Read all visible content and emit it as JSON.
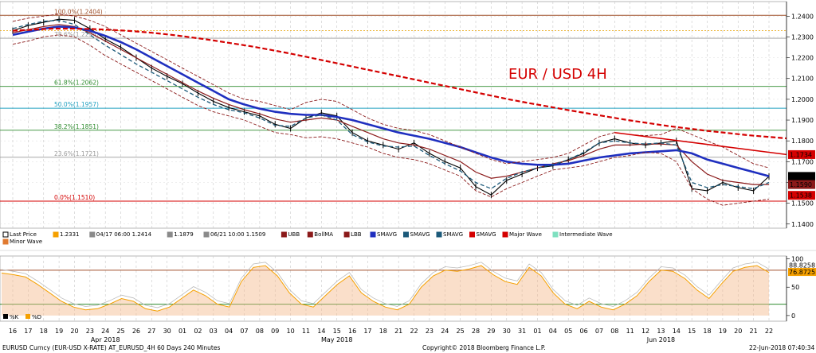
{
  "chart_data": {
    "type": "line",
    "title": "EUR / USD 4H",
    "title_color": "#d40000",
    "price_axis": {
      "ticks": [
        "1.2400",
        "1.2300",
        "1.2200",
        "1.2100",
        "1.2000",
        "1.1900",
        "1.1800",
        "1.1700",
        "1.1600",
        "1.1500",
        "1.1400"
      ],
      "ylim": [
        1.138,
        1.247
      ]
    },
    "osc_axis": {
      "ticks": [
        "100",
        "50",
        "0"
      ],
      "ylim": [
        -10,
        105
      ]
    },
    "price_tags": [
      {
        "label": "1.1734",
        "value": 1.1734,
        "bg": "#d40000",
        "fg": "#ffffff"
      },
      {
        "label": "1.1629",
        "value": 1.1629,
        "bg": "#000000",
        "fg": "#ffffff"
      },
      {
        "label": "1.1590",
        "value": 1.159,
        "bg": "#8b1a1a",
        "fg": "#ffffff"
      },
      {
        "label": "1.1538",
        "value": 1.1538,
        "bg": "#d40000",
        "fg": "#ffffff"
      }
    ],
    "osc_tags": [
      {
        "label": "88.8258",
        "value": 88.8258,
        "bg": "#ffffff",
        "fg": "#000000"
      },
      {
        "label": "76.8725",
        "value": 76.8725,
        "bg": "#f5a000",
        "fg": "#000000"
      }
    ],
    "fib_levels": [
      {
        "label": "100.0%(1.2404)",
        "value": 1.2404,
        "color": "#a0522d"
      },
      {
        "label": "78.6%(1.2294)",
        "value": 1.2294,
        "color": "#9a9a9a"
      },
      {
        "label": "61.8%(1.2062)",
        "value": 1.2062,
        "color": "#2e8b2e"
      },
      {
        "label": "50.0%(1.1957)",
        "value": 1.1957,
        "color": "#20a0c0"
      },
      {
        "label": "38.2%(1.1851)",
        "value": 1.1851,
        "color": "#2e8b2e"
      },
      {
        "label": "23.6%(1.1721)",
        "value": 1.1721,
        "color": "#9a9a9a"
      },
      {
        "label": "0.0%(1.1510)",
        "value": 1.151,
        "color": "#d40000"
      }
    ],
    "x_day_labels": [
      "16",
      "17",
      "18",
      "19",
      "20",
      "23",
      "24",
      "25",
      "26",
      "27",
      "30",
      "01",
      "02",
      "03",
      "04",
      "07",
      "08",
      "09",
      "10",
      "11",
      "14",
      "15",
      "16",
      "17",
      "18",
      "21",
      "22",
      "23",
      "24",
      "25",
      "28",
      "29",
      "30",
      "31",
      "01",
      "04",
      "05",
      "06",
      "07",
      "08",
      "11",
      "12",
      "13",
      "14",
      "15",
      "18",
      "19",
      "20",
      "21",
      "22"
    ],
    "x_month_labels": [
      {
        "label": "Apr 2018",
        "day_index": 6
      },
      {
        "label": "May 2018",
        "day_index": 21
      },
      {
        "label": "Jun 2018",
        "day_index": 42
      }
    ],
    "series": [
      {
        "name": "Last Price",
        "color": "#000000",
        "values": [
          1.233,
          1.2355,
          1.237,
          1.2385,
          1.238,
          1.234,
          1.229,
          1.225,
          1.22,
          1.215,
          1.211,
          1.2075,
          1.203,
          1.199,
          1.196,
          1.194,
          1.192,
          1.188,
          1.186,
          1.191,
          1.1935,
          1.192,
          1.184,
          1.18,
          1.178,
          1.176,
          1.179,
          1.174,
          1.17,
          1.167,
          1.158,
          1.154,
          1.161,
          1.164,
          1.167,
          1.168,
          1.171,
          1.174,
          1.179,
          1.181,
          1.179,
          1.178,
          1.179,
          1.18,
          1.157,
          1.156,
          1.16,
          1.1575,
          1.156,
          1.1629
        ]
      },
      {
        "name": "BollMA",
        "color": "#8b1a1a",
        "values": [
          1.232,
          1.2335,
          1.235,
          1.236,
          1.235,
          1.232,
          1.228,
          1.224,
          1.22,
          1.216,
          1.212,
          1.208,
          1.204,
          1.2005,
          1.1975,
          1.195,
          1.193,
          1.1905,
          1.189,
          1.19,
          1.191,
          1.19,
          1.187,
          1.184,
          1.181,
          1.179,
          1.178,
          1.176,
          1.173,
          1.17,
          1.165,
          1.162,
          1.163,
          1.165,
          1.167,
          1.169,
          1.1705,
          1.173,
          1.176,
          1.178,
          1.178,
          1.1785,
          1.1785,
          1.178,
          1.17,
          1.164,
          1.161,
          1.16,
          1.159,
          1.159
        ]
      },
      {
        "name": "SMAVG (blue)",
        "color": "#1f2fbf",
        "values": [
          1.231,
          1.2325,
          1.234,
          1.235,
          1.2345,
          1.233,
          1.2305,
          1.2275,
          1.224,
          1.22,
          1.216,
          1.212,
          1.208,
          1.204,
          1.2,
          1.1975,
          1.1955,
          1.194,
          1.193,
          1.1925,
          1.1925,
          1.1915,
          1.19,
          1.188,
          1.186,
          1.184,
          1.1825,
          1.181,
          1.179,
          1.177,
          1.1745,
          1.172,
          1.17,
          1.169,
          1.1685,
          1.1685,
          1.169,
          1.1705,
          1.172,
          1.173,
          1.174,
          1.1745,
          1.175,
          1.1755,
          1.174,
          1.171,
          1.169,
          1.167,
          1.165,
          1.163
        ]
      },
      {
        "name": "SMAVG (dashed)",
        "color": "#1c5a7a",
        "values": [
          1.234,
          1.236,
          1.2375,
          1.238,
          1.236,
          1.231,
          1.226,
          1.2215,
          1.217,
          1.213,
          1.209,
          1.205,
          1.201,
          1.1975,
          1.195,
          1.1935,
          1.191,
          1.1875,
          1.187,
          1.191,
          1.1925,
          1.19,
          1.183,
          1.1795,
          1.1775,
          1.177,
          1.1775,
          1.173,
          1.169,
          1.1655,
          1.16,
          1.157,
          1.162,
          1.165,
          1.167,
          1.1685,
          1.171,
          1.1745,
          1.179,
          1.18,
          1.179,
          1.1785,
          1.179,
          1.178,
          1.16,
          1.1575,
          1.159,
          1.158,
          1.157,
          1.16
        ]
      },
      {
        "name": "SMAVG (red dashed)",
        "color": "#d40000",
        "values": [
          1.233,
          1.2335,
          1.234,
          1.234,
          1.2338,
          1.2334,
          1.2328,
          1.232,
          1.231,
          1.2298,
          1.2285,
          1.227,
          1.2255,
          1.2238,
          1.222,
          1.22,
          1.218,
          1.216,
          1.214,
          1.212,
          1.21,
          1.208,
          1.206,
          1.204,
          1.202,
          1.2,
          1.1982,
          1.1965,
          1.1948,
          1.1932,
          1.1916,
          1.19,
          1.1886,
          1.1872,
          1.186,
          1.1848,
          1.1838,
          1.1828,
          1.182,
          1.1812
        ]
      },
      {
        "name": "UBB",
        "color": "#8b1a1a",
        "values": [
          1.2375,
          1.239,
          1.24,
          1.241,
          1.24,
          1.238,
          1.235,
          1.231,
          1.227,
          1.223,
          1.219,
          1.215,
          1.211,
          1.207,
          1.203,
          1.2,
          1.199,
          1.197,
          1.195,
          1.1985,
          1.2,
          1.199,
          1.195,
          1.191,
          1.188,
          1.186,
          1.185,
          1.183,
          1.18,
          1.177,
          1.174,
          1.171,
          1.169,
          1.17,
          1.171,
          1.172,
          1.174,
          1.178,
          1.182,
          1.184,
          1.183,
          1.1825,
          1.183,
          1.186,
          1.183,
          1.18,
          1.177,
          1.173,
          1.169,
          1.167
        ]
      },
      {
        "name": "LBB",
        "color": "#8b1a1a",
        "values": [
          1.2265,
          1.228,
          1.23,
          1.231,
          1.23,
          1.226,
          1.221,
          1.217,
          1.213,
          1.209,
          1.205,
          1.201,
          1.197,
          1.194,
          1.192,
          1.19,
          1.187,
          1.184,
          1.183,
          1.1815,
          1.182,
          1.181,
          1.179,
          1.177,
          1.174,
          1.172,
          1.171,
          1.169,
          1.166,
          1.163,
          1.156,
          1.153,
          1.157,
          1.16,
          1.163,
          1.166,
          1.167,
          1.168,
          1.17,
          1.172,
          1.173,
          1.1745,
          1.174,
          1.17,
          1.157,
          1.152,
          1.149,
          1.15,
          1.151,
          1.152
        ]
      },
      {
        "name": "Major Wave",
        "color": "#d40000",
        "from_day_index": 39,
        "values": [
          1.184,
          1.1734
        ]
      }
    ],
    "oscillator": {
      "band_lines": [
        {
          "value": 80,
          "color": "#a0522d"
        },
        {
          "value": 20,
          "color": "#2e8b2e"
        }
      ],
      "values": [
        75,
        72,
        68,
        55,
        40,
        25,
        15,
        10,
        12,
        20,
        30,
        25,
        12,
        8,
        15,
        30,
        45,
        35,
        20,
        15,
        60,
        85,
        88,
        70,
        40,
        20,
        15,
        35,
        55,
        70,
        40,
        25,
        15,
        10,
        20,
        50,
        70,
        80,
        78,
        82,
        88,
        72,
        60,
        55,
        85,
        70,
        40,
        20,
        12,
        25,
        15,
        10,
        20,
        35,
        60,
        80,
        78,
        65,
        45,
        30,
        55,
        78,
        85,
        88,
        76
      ]
    },
    "legend": [
      {
        "label": "Last Price",
        "color": "#000000",
        "shape": "box"
      },
      {
        "label": "1.2331",
        "color": "#f5a000",
        "shape": "fill"
      },
      {
        "label": "04/17 06:00 1.2414",
        "color": "#8a8a8a",
        "shape": "tri"
      },
      {
        "label": "1.1879",
        "color": "#8a8a8a",
        "shape": "plus"
      },
      {
        "label": "06/21 10:00 1.1509",
        "color": "#8a8a8a",
        "shape": "tri"
      },
      {
        "label": "UBB",
        "color": "#8b1a1a",
        "shape": "dash"
      },
      {
        "label": "BollMA",
        "color": "#8b1a1a",
        "shape": "fill"
      },
      {
        "label": "LBB",
        "color": "#8b1a1a",
        "shape": "dash"
      },
      {
        "label": "SMAVG",
        "color": "#1f2fbf",
        "shape": "fill"
      },
      {
        "label": "SMAVG",
        "color": "#1c5a7a",
        "shape": "fill"
      },
      {
        "label": "SMAVG",
        "color": "#1c5a7a",
        "shape": "dash"
      },
      {
        "label": "SMAVG",
        "color": "#d40000",
        "shape": "dash"
      },
      {
        "label": "Major Wave",
        "color": "#d40000",
        "shape": "fill"
      },
      {
        "label": "Intermediate Wave",
        "color": "#7fe0c0",
        "shape": "fill"
      },
      {
        "label": "Minor Wave",
        "color": "#e07a30",
        "shape": "fill"
      }
    ],
    "osc_legend": [
      {
        "label": "%K",
        "color": "#000000"
      },
      {
        "label": "%D",
        "color": "#f5a000"
      }
    ]
  },
  "footer": {
    "left": "EURUSD Curncy (EUR-USD X-RATE) AT_EURUSD_4H 60 Days 240 Minutes",
    "center": "Copyright© 2018 Bloomberg Finance L.P.",
    "right": "22-Jun-2018 07:40:34"
  }
}
